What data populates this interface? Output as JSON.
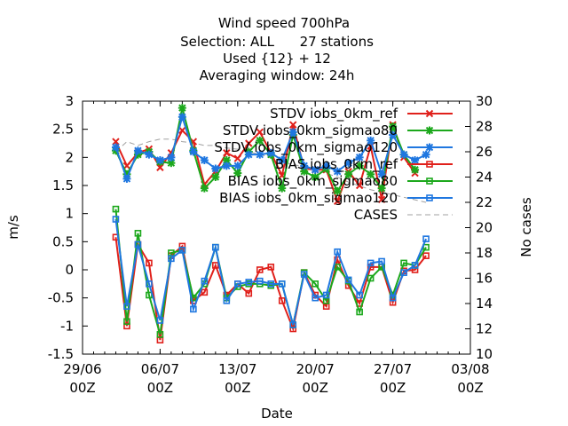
{
  "chart_data": {
    "type": "line",
    "title_lines": [
      "Wind speed 700hPa",
      "Selection: ALL      27 stations",
      "Used {12} + 12",
      "Averaging window: 24h"
    ],
    "xlabel": "Date",
    "ylabel": "m/s",
    "y2label": "No cases",
    "xlim": [
      "2024-06-29",
      "2024-08-03"
    ],
    "xticks": [
      {
        "date": "2024-06-29",
        "label1": "29/06",
        "label2": "00Z"
      },
      {
        "date": "2024-07-06",
        "label1": "06/07",
        "label2": "00Z"
      },
      {
        "date": "2024-07-13",
        "label1": "13/07",
        "label2": "00Z"
      },
      {
        "date": "2024-07-20",
        "label1": "20/07",
        "label2": "00Z"
      },
      {
        "date": "2024-07-27",
        "label1": "27/07",
        "label2": "00Z"
      },
      {
        "date": "2024-08-03",
        "label1": "03/08",
        "label2": "00Z"
      }
    ],
    "ylim": [
      -1.5,
      3
    ],
    "yticks": [
      "-1.5",
      "-1",
      "-0.5",
      "0",
      "0.5",
      "1",
      "1.5",
      "2",
      "2.5",
      "3"
    ],
    "y2lim": [
      10,
      30
    ],
    "y2ticks": [
      "10",
      "12",
      "14",
      "16",
      "18",
      "20",
      "22",
      "24",
      "26",
      "28",
      "30"
    ],
    "grid": false,
    "legend_position": "top-right",
    "colors": {
      "ref": "#e0201b",
      "sigma80": "#1ca81c",
      "sigma120": "#1f77e0",
      "cases": "#a0a0a0"
    },
    "x": [
      "2024-07-02",
      "2024-07-03",
      "2024-07-04",
      "2024-07-05",
      "2024-07-06",
      "2024-07-07",
      "2024-07-08",
      "2024-07-09",
      "2024-07-10",
      "2024-07-11",
      "2024-07-12",
      "2024-07-13",
      "2024-07-14",
      "2024-07-15",
      "2024-07-16",
      "2024-07-17",
      "2024-07-18",
      "2024-07-19",
      "2024-07-20",
      "2024-07-21",
      "2024-07-22",
      "2024-07-23",
      "2024-07-24",
      "2024-07-25",
      "2024-07-26",
      "2024-07-27",
      "2024-07-28",
      "2024-07-29",
      "2024-07-30"
    ],
    "series": [
      {
        "name": "STDV iobs_0km_ref",
        "kind": "stdv",
        "color_key": "ref",
        "axis": "y1",
        "values": [
          2.28,
          1.85,
          2.08,
          2.15,
          1.82,
          2.08,
          2.48,
          2.28,
          1.52,
          1.75,
          2.08,
          1.98,
          2.25,
          2.45,
          2.08,
          1.68,
          2.58,
          1.8,
          1.78,
          1.78,
          1.22,
          1.75,
          1.5,
          2.2,
          1.25,
          2.58,
          2.0,
          1.72,
          null
        ]
      },
      {
        "name": "STDV iobs_0km_sigmao80",
        "kind": "stdv",
        "color_key": "sigma80",
        "axis": "y1",
        "values": [
          2.12,
          1.7,
          2.05,
          2.1,
          1.92,
          1.9,
          2.88,
          2.12,
          1.45,
          1.65,
          1.95,
          1.72,
          2.1,
          2.3,
          2.05,
          1.45,
          2.4,
          1.75,
          1.65,
          1.8,
          1.4,
          1.7,
          1.85,
          1.7,
          1.45,
          2.55,
          2.05,
          1.78,
          null
        ]
      },
      {
        "name": "STDV iobs_0km_sigmao120",
        "kind": "stdv",
        "color_key": "sigma120",
        "axis": "y1",
        "values": [
          2.18,
          1.62,
          2.12,
          2.05,
          1.95,
          2.0,
          2.72,
          2.1,
          1.95,
          1.8,
          1.85,
          1.85,
          2.05,
          2.05,
          2.08,
          1.95,
          2.45,
          1.85,
          1.78,
          1.85,
          1.75,
          1.9,
          2.0,
          2.3,
          1.7,
          2.4,
          2.05,
          1.95,
          2.05
        ]
      },
      {
        "name": "BIAS iobs_0km_ref",
        "kind": "bias",
        "color_key": "ref",
        "axis": "y1",
        "values": [
          0.58,
          -1.0,
          0.45,
          0.12,
          -1.25,
          0.25,
          0.42,
          -0.55,
          -0.4,
          0.08,
          -0.45,
          -0.25,
          -0.42,
          0.0,
          0.05,
          -0.55,
          -1.05,
          -0.05,
          -0.45,
          -0.65,
          0.18,
          -0.28,
          -0.6,
          0.05,
          0.05,
          -0.58,
          -0.02,
          0.0,
          0.25
        ]
      },
      {
        "name": "BIAS iobs_0km_sigmao80",
        "kind": "bias",
        "color_key": "sigma80",
        "axis": "y1",
        "values": [
          1.08,
          -0.92,
          0.65,
          -0.45,
          -1.15,
          0.3,
          0.35,
          -0.5,
          -0.25,
          0.4,
          -0.5,
          -0.3,
          -0.25,
          -0.25,
          -0.28,
          -0.25,
          -0.98,
          -0.05,
          -0.25,
          -0.55,
          0.05,
          -0.2,
          -0.75,
          -0.15,
          0.05,
          -0.45,
          0.12,
          0.08,
          0.4
        ]
      },
      {
        "name": "BIAS iobs_0km_sigmao120",
        "kind": "bias",
        "color_key": "sigma120",
        "axis": "y1",
        "values": [
          0.9,
          -0.65,
          0.45,
          -0.25,
          -0.9,
          0.2,
          0.35,
          -0.7,
          -0.2,
          0.4,
          -0.55,
          -0.25,
          -0.22,
          -0.2,
          -0.25,
          -0.25,
          -0.98,
          -0.08,
          -0.5,
          -0.45,
          0.32,
          -0.18,
          -0.45,
          0.12,
          0.15,
          -0.5,
          -0.05,
          0.08,
          0.55
        ]
      },
      {
        "name": "CASES",
        "kind": "cases",
        "color_key": "cases",
        "axis": "y2",
        "values": [
          26.0,
          26.8,
          26.5,
          26.8,
          27.0,
          27.0,
          26.8,
          26.7,
          26.5,
          26.5,
          26.3,
          26.2,
          26.0,
          25.8,
          25.5,
          25.2,
          25.0,
          24.8,
          24.5,
          24.3,
          24.0,
          23.6,
          23.3,
          23.0,
          22.8,
          22.6,
          22.4,
          22.2,
          22.0
        ]
      }
    ]
  }
}
